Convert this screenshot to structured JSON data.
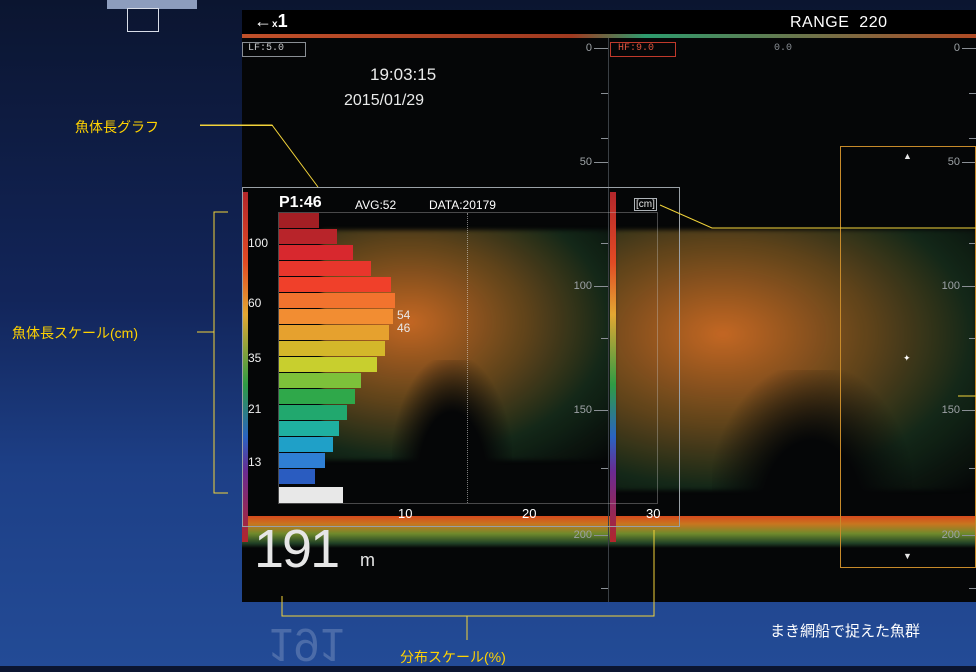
{
  "toolbar": {
    "zoom_arrow": "←",
    "zoom_sub": "x",
    "zoom_value": "1",
    "range_label": "RANGE",
    "range_value": "220"
  },
  "channels": {
    "lf_label": "LF:5.0",
    "hf_label": "HF:9.0",
    "hf_offset": "0.0"
  },
  "clock": {
    "time": "19:03:15",
    "date": "2015/01/29"
  },
  "depth_scale": {
    "left_labels": [
      "0",
      "50",
      "100",
      "150",
      "200"
    ],
    "right_labels": [
      "0",
      "50",
      "100",
      "150",
      "200"
    ]
  },
  "depth_readout": {
    "value": "191",
    "unit": "m"
  },
  "histogram": {
    "p1": "P1:46",
    "avg": "AVG:52",
    "data": "DATA:20179",
    "unit": "[cm]",
    "y_labels": [
      "100",
      "60",
      "35",
      "21",
      "13"
    ],
    "x_labels": [
      "10",
      "20",
      "30"
    ],
    "value_labels": [
      "54",
      "46"
    ]
  },
  "annotations": {
    "graph_label": "魚体長グラフ",
    "scale_label": "魚体長スケール(cm)",
    "distribution_label": "分布スケール(%)",
    "caption": "まき網船で捉えた魚群"
  },
  "colors": {
    "annotation": "#ffd200",
    "screen_bg": "#050607",
    "lf_frame": "#8a8f95",
    "hf_frame": "#c0392b"
  }
}
